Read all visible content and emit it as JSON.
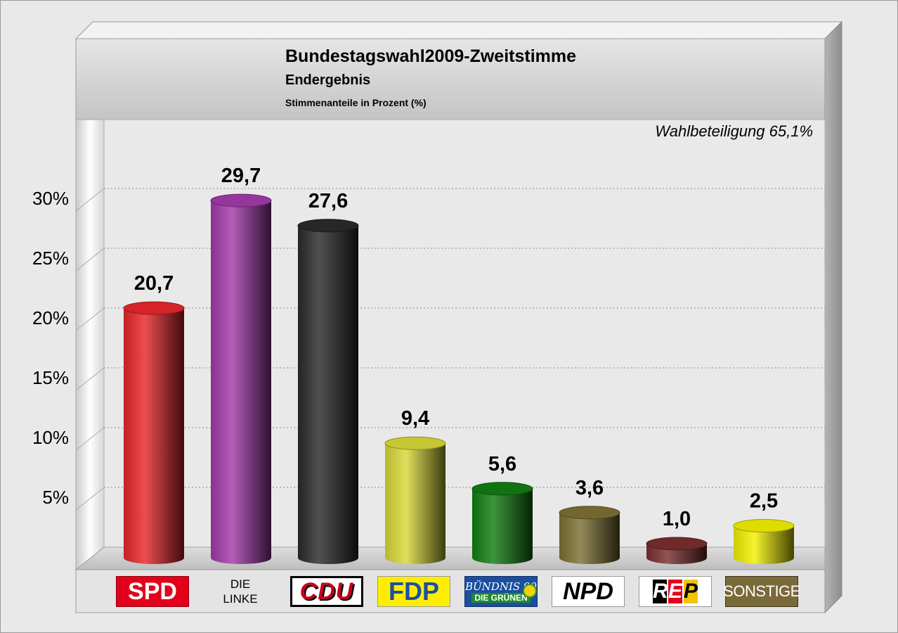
{
  "header": {
    "title": "Bundestagswahl2009-Zweitstimme",
    "subtitle": "Endergebnis",
    "caption": "Stimmenanteile in Prozent (%)"
  },
  "turnout_label": "Wahlbeteiligung 65,1%",
  "chart_data": {
    "type": "bar",
    "style": "3d-cylinder",
    "categories": [
      "SPD",
      "DIE LINKE",
      "CDU",
      "FDP",
      "BÜNDNIS 90 DIE GRÜNEN",
      "NPD",
      "REP",
      "SONSTIGE"
    ],
    "values": [
      20.7,
      29.7,
      27.6,
      9.4,
      5.6,
      3.6,
      1.0,
      2.5
    ],
    "value_labels": [
      "20,7",
      "29,7",
      "27,6",
      "9,4",
      "5,6",
      "3,6",
      "1,0",
      "2,5"
    ],
    "colors": [
      "#e8262a",
      "#a33aab",
      "#2a2a2a",
      "#d8d838",
      "#117d11",
      "#7d7033",
      "#7a2e2e",
      "#f2f000"
    ],
    "yticks": [
      5,
      10,
      15,
      20,
      25,
      30
    ],
    "ytick_labels": [
      "5%",
      "10%",
      "15%",
      "20%",
      "25%",
      "30%"
    ],
    "ylim": [
      0,
      35
    ],
    "grid": true,
    "legend": "none"
  },
  "logos": {
    "spd": "SPD",
    "linke_line1": "DIE",
    "linke_line2": "LINKE",
    "cdu": "CDU",
    "fdp": "FDP",
    "gruene_line1": "BÜNDNIS 90",
    "gruene_line2": "DIE GRÜNEN",
    "npd": "NPD",
    "rep_letters": [
      "R",
      "E",
      "P"
    ],
    "sonstige": "SONSTIGE"
  }
}
